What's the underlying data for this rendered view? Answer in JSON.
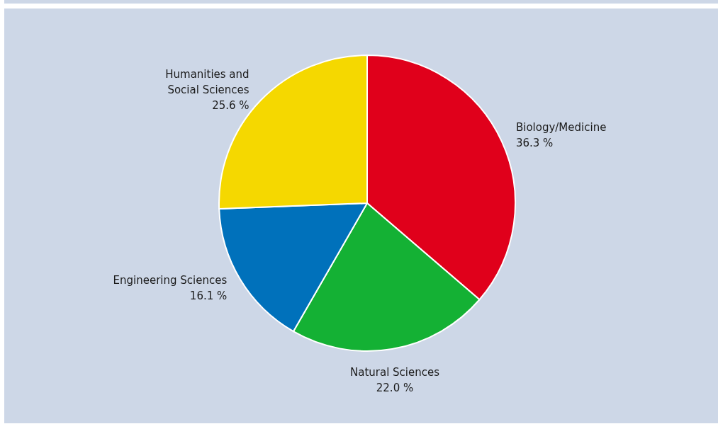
{
  "chart_data": {
    "type": "pie",
    "categories": [
      "Biology/Medicine",
      "Natural Sciences",
      "Engineering Sciences",
      "Humanities and\nSocial Sciences"
    ],
    "values": [
      36.3,
      22.0,
      16.1,
      25.6
    ],
    "colors": [
      "#e0001b",
      "#14b134",
      "#0071bb",
      "#f5d800"
    ],
    "value_labels": [
      "36.3 %",
      "22.0 %",
      "16.1 %",
      "25.6 %"
    ]
  }
}
